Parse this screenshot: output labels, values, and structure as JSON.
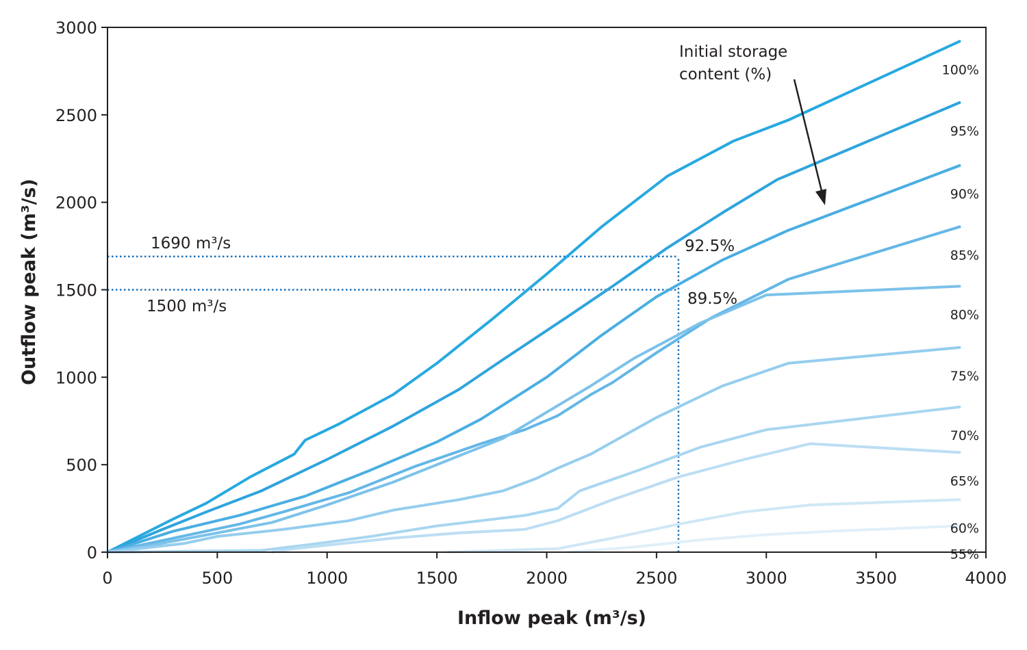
{
  "chart_data": {
    "type": "line",
    "xlabel": "Inflow peak (m³/s)",
    "ylabel": "Outflow peak (m³/s)",
    "xlim": [
      0,
      4000
    ],
    "ylim": [
      0,
      3000
    ],
    "xticks": [
      0,
      500,
      1000,
      1500,
      2000,
      2500,
      3000,
      3500,
      4000
    ],
    "yticks": [
      0,
      500,
      1000,
      1500,
      2000,
      2500,
      3000
    ],
    "grid": false,
    "legend_title": "Initial storage content (%)",
    "series": [
      {
        "name": "100%",
        "color": "#27a9e0",
        "x": [
          0,
          300,
          450,
          650,
          850,
          900,
          1050,
          1300,
          1500,
          1750,
          2000,
          2250,
          2550,
          2850,
          3100,
          3880
        ],
        "y": [
          0,
          190,
          280,
          430,
          560,
          640,
          730,
          900,
          1080,
          1330,
          1590,
          1860,
          2150,
          2350,
          2470,
          2920
        ]
      },
      {
        "name": "95%",
        "color": "#2fa4dc",
        "x": [
          0,
          250,
          450,
          700,
          1000,
          1300,
          1600,
          1800,
          2100,
          2300,
          2550,
          2800,
          3050,
          3880
        ],
        "y": [
          0,
          130,
          230,
          350,
          530,
          720,
          930,
          1100,
          1350,
          1520,
          1740,
          1940,
          2130,
          2570
        ]
      },
      {
        "name": "90%",
        "color": "#4aaee2",
        "x": [
          0,
          300,
          600,
          900,
          1200,
          1500,
          1700,
          2000,
          2250,
          2500,
          2800,
          3100,
          3880
        ],
        "y": [
          0,
          120,
          210,
          320,
          470,
          630,
          760,
          1000,
          1240,
          1460,
          1670,
          1840,
          2210
        ]
      },
      {
        "name": "85%",
        "color": "#64b7e6",
        "x": [
          0,
          300,
          600,
          800,
          1100,
          1400,
          1700,
          1900,
          2050,
          2200,
          2300,
          2500,
          2750,
          3100,
          3880
        ],
        "y": [
          0,
          80,
          160,
          230,
          340,
          490,
          620,
          700,
          780,
          900,
          970,
          1140,
          1340,
          1560,
          1860
        ]
      },
      {
        "name": "80%",
        "color": "#7cc2ea",
        "x": [
          0,
          200,
          500,
          750,
          1000,
          1300,
          1500,
          1800,
          2000,
          2200,
          2400,
          2700,
          3000,
          3880
        ],
        "y": [
          0,
          40,
          110,
          170,
          270,
          400,
          500,
          650,
          800,
          950,
          1110,
          1310,
          1470,
          1520
        ]
      },
      {
        "name": "75%",
        "color": "#95cdee",
        "x": [
          0,
          350,
          500,
          800,
          1100,
          1300,
          1600,
          1800,
          1950,
          2050,
          2200,
          2500,
          2800,
          3100,
          3880
        ],
        "y": [
          0,
          50,
          90,
          130,
          180,
          240,
          300,
          350,
          420,
          480,
          560,
          770,
          950,
          1080,
          1170
        ]
      },
      {
        "name": "70%",
        "color": "#a9d6f0",
        "x": [
          0,
          700,
          900,
          1200,
          1500,
          1700,
          1900,
          2050,
          2150,
          2400,
          2700,
          3000,
          3880
        ],
        "y": [
          0,
          10,
          40,
          90,
          150,
          180,
          210,
          250,
          350,
          460,
          600,
          700,
          830
        ]
      },
      {
        "name": "65%",
        "color": "#bcdef3",
        "x": [
          750,
          850,
          1000,
          1300,
          1600,
          1900,
          2050,
          2300,
          2600,
          2900,
          3200,
          3880
        ],
        "y": [
          0,
          20,
          40,
          80,
          110,
          130,
          180,
          300,
          430,
          530,
          620,
          570
        ]
      },
      {
        "name": "60%",
        "color": "#cfe7f6",
        "x": [
          1550,
          1800,
          2050,
          2300,
          2600,
          2900,
          3200,
          3880
        ],
        "y": [
          0,
          10,
          20,
          80,
          160,
          230,
          270,
          300
        ]
      },
      {
        "name": "55%",
        "color": "#e0f0fa",
        "x": [
          2100,
          2400,
          2700,
          3000,
          3300,
          3880
        ],
        "y": [
          0,
          30,
          70,
          100,
          120,
          150
        ]
      }
    ],
    "annotations": {
      "ref_1690_label": "1690 m³/s",
      "ref_1500_label": "1500 m³/s",
      "label_92_5": "92.5%",
      "label_89_5": "89.5%",
      "ref_lines": [
        {
          "y": 1690,
          "x_end": 2600
        },
        {
          "y": 1500,
          "x_end": 2600
        },
        {
          "x": 2600,
          "y_start": 0,
          "y_end": 1690
        }
      ]
    }
  }
}
